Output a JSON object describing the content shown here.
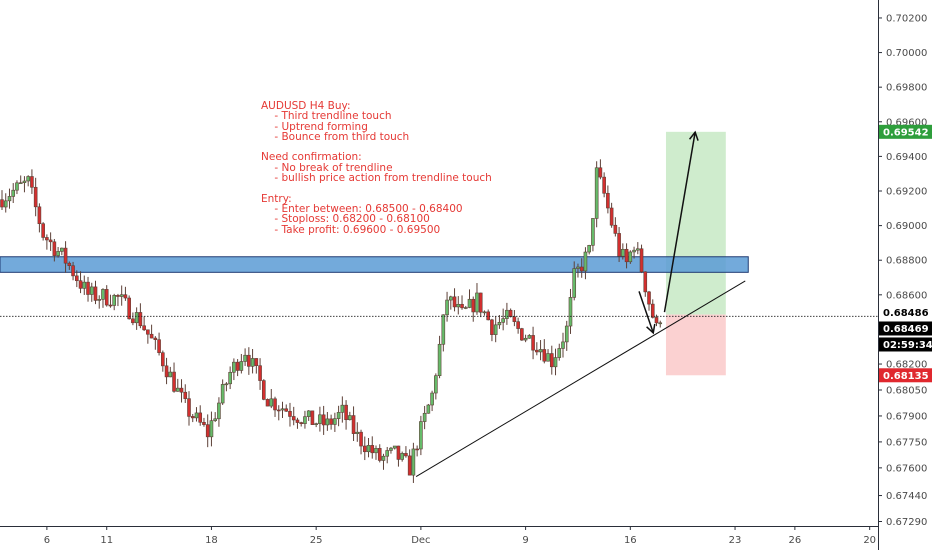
{
  "chart_data": {
    "type": "candlestick",
    "symbol": "AUDUSD",
    "timeframe": "H4",
    "ylim": [
      0.6722,
      0.7035
    ],
    "y_ticks": [
      "0.70200",
      "0.70000",
      "0.69800",
      "0.69600",
      "0.69400",
      "0.69200",
      "0.69000",
      "0.68800",
      "0.68600",
      "0.68400",
      "0.68200",
      "0.68050",
      "0.67900",
      "0.67750",
      "0.67600",
      "0.67440",
      "0.67290"
    ],
    "x_ticks": [
      {
        "label": "6",
        "index": 6
      },
      {
        "label": "11",
        "index": 14
      },
      {
        "label": "18",
        "index": 28
      },
      {
        "label": "25",
        "index": 42
      },
      {
        "label": "Dec",
        "index": 56
      },
      {
        "label": "9",
        "index": 70
      },
      {
        "label": "16",
        "index": 84
      },
      {
        "label": "23",
        "index": 98
      },
      {
        "label": "26",
        "index": 106
      },
      {
        "label": "20",
        "index": 116
      }
    ],
    "series_hint": "AUDUSD H4 candles, approx. 2 per day",
    "path": [
      [
        0,
        0.6915
      ],
      [
        4,
        0.6925
      ],
      [
        6,
        0.6895
      ],
      [
        9,
        0.688
      ],
      [
        12,
        0.686
      ],
      [
        16,
        0.6858
      ],
      [
        19,
        0.6845
      ],
      [
        22,
        0.6822
      ],
      [
        25,
        0.6795
      ],
      [
        28,
        0.678
      ],
      [
        31,
        0.6815
      ],
      [
        33,
        0.6828
      ],
      [
        36,
        0.68
      ],
      [
        38,
        0.6795
      ],
      [
        41,
        0.6788
      ],
      [
        44,
        0.6785
      ],
      [
        46,
        0.6792
      ],
      [
        48,
        0.6778
      ],
      [
        51,
        0.6765
      ],
      [
        53,
        0.6768
      ],
      [
        55,
        0.676
      ],
      [
        56,
        0.6775
      ],
      [
        58,
        0.6802
      ],
      [
        60,
        0.6858
      ],
      [
        62,
        0.6848
      ],
      [
        64,
        0.6857
      ],
      [
        66,
        0.6842
      ],
      [
        68,
        0.6846
      ],
      [
        70,
        0.6838
      ],
      [
        72,
        0.6832
      ],
      [
        74,
        0.6822
      ],
      [
        76,
        0.684
      ],
      [
        77,
        0.687
      ],
      [
        79,
        0.6885
      ],
      [
        80,
        0.693
      ],
      [
        81,
        0.6918
      ],
      [
        83,
        0.6885
      ],
      [
        84,
        0.6878
      ],
      [
        85,
        0.689
      ],
      [
        86,
        0.6875
      ],
      [
        87,
        0.6856
      ],
      [
        88,
        0.684
      ],
      [
        88.5,
        0.6848
      ]
    ],
    "current_price": 0.68469,
    "support_zone": {
      "from": 0.6873,
      "to": 0.6882
    },
    "trendline": {
      "from": [
        55.5,
        0.6755
      ],
      "to": [
        99.5,
        0.6868
      ]
    },
    "position": {
      "entry": 0.68486,
      "target": 0.69542,
      "stop": 0.68135,
      "from_index": 88.5,
      "to_index": 96.5
    },
    "labels": {
      "target": "0.69542",
      "entry": "0.68486",
      "current": "0.68469",
      "countdown": "02:59:34",
      "stop": "0.68135"
    },
    "annotation": "AUDUSD H4 Buy:\n    - Third trendline touch\n    - Uptrend forming\n    - Bounce from third touch\n\nNeed confirmation:\n    - No break of trendline\n    - bullish price action from trendline touch\n\nEntry:\n    - Enter between: 0.68500 - 0.68400\n    - Stoploss: 0.68200 - 0.68100\n    - Take profit: 0.69600 - 0.69500",
    "colors": {
      "up": "#66bb6a",
      "down": "#d32f2f",
      "wick": "#5d4037",
      "zone_fill": "#5b9bd5",
      "zone_border": "#1f3b73",
      "profit_fill": "#cfeccd",
      "loss_fill": "#fbd1d1",
      "target_badge": "#2e9e3c",
      "stop_badge": "#e0282e",
      "price_badge": "#000000",
      "annotation_text": "#e53935"
    }
  }
}
